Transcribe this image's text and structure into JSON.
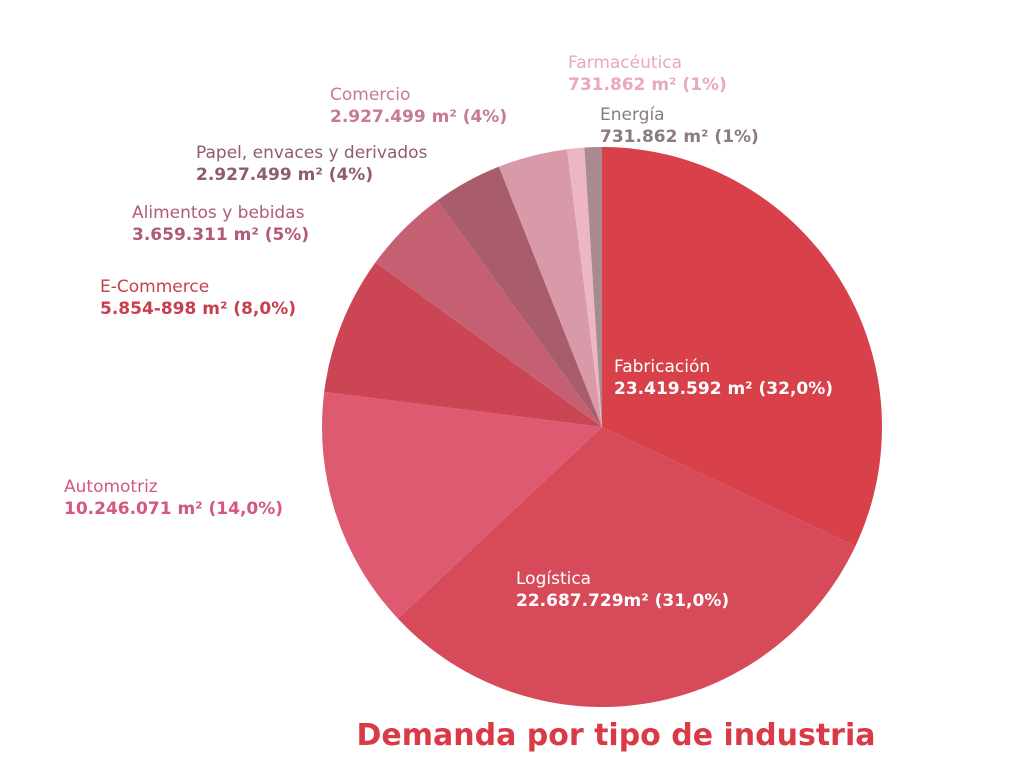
{
  "chart_data": {
    "type": "pie",
    "title": "Demanda por tipo de industria",
    "title_color": "#d93a45",
    "series": [
      {
        "name": "Fabricación",
        "value": 23419592,
        "label_value": "23.419.592 m² (32,0%)",
        "percent": 32.0,
        "color": "#d8404a",
        "label_color": "#ffffff"
      },
      {
        "name": "Logística",
        "value": 22687729,
        "label_value": "22.687.729m² (31,0%)",
        "percent": 31.0,
        "color": "#d64a5a",
        "label_color": "#ffffff"
      },
      {
        "name": "Automotriz",
        "value": 10246071,
        "label_value": "10.246.071 m² (14,0%)",
        "percent": 14.0,
        "color": "#dd5a70",
        "label_color": "#d4587a"
      },
      {
        "name": "E-Commerce",
        "value": 5854898,
        "label_value": "5.854-898 m² (8,0%)",
        "percent": 8.0,
        "color": "#cc4555",
        "label_color": "#c73f4e"
      },
      {
        "name": "Alimentos y bebidas",
        "value": 3659311,
        "label_value": "3.659.311 m² (5%)",
        "percent": 5.0,
        "color": "#c46072",
        "label_color": "#b05a78"
      },
      {
        "name": "Papel, envaces y derivados",
        "value": 2927499,
        "label_value": "2.927.499 m² (4%)",
        "percent": 4.0,
        "color": "#a95c6c",
        "label_color": "#8e5c6c"
      },
      {
        "name": "Comercio",
        "value": 2927499,
        "label_value": "2.927.499 m² (4%)",
        "percent": 4.0,
        "color": "#d89aa8",
        "label_color": "#c67a94"
      },
      {
        "name": "Farmacéutica",
        "value": 731862,
        "label_value": "731.862 m² (1%)",
        "percent": 1.0,
        "color": "#edb6c4",
        "label_color": "#e8a9bc"
      },
      {
        "name": "Energía",
        "value": 731862,
        "label_value": "731.862 m² (1%)",
        "percent": 1.0,
        "color": "#a88a92",
        "label_color": "#8a7a82"
      }
    ]
  }
}
